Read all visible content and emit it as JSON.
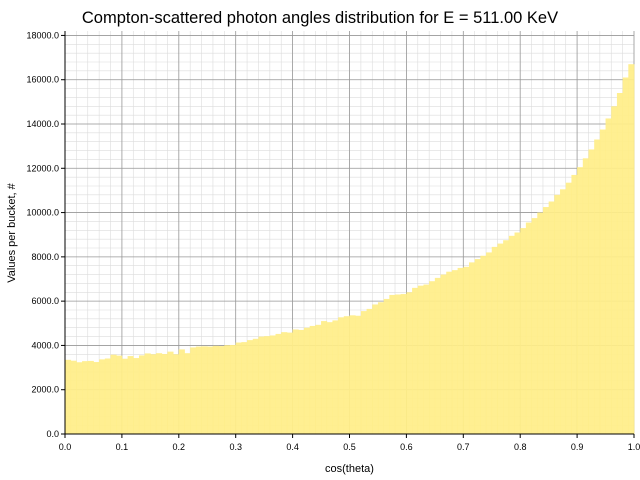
{
  "chart_data": {
    "type": "bar",
    "title": "Compton-scattered photon angles distribution for E = 511.00 KeV",
    "xlabel": "cos(theta)",
    "ylabel": "Values per bucket, #",
    "xlim": [
      0.0,
      1.0
    ],
    "ylim": [
      0,
      18200
    ],
    "bin_width": 0.01,
    "x_ticks": [
      "0.0",
      "0.1",
      "0.2",
      "0.3",
      "0.4",
      "0.5",
      "0.6",
      "0.7",
      "0.8",
      "0.9",
      "1.0"
    ],
    "y_ticks": [
      "0.0",
      "2000.0",
      "4000.0",
      "6000.0",
      "8000.0",
      "10000.0",
      "12000.0",
      "14000.0",
      "16000.0",
      "18000.0"
    ],
    "grid": true,
    "bar_color": "#ffee88",
    "grid_major_color": "#999999",
    "grid_minor_color": "#dcdcdc",
    "x": [
      0.005,
      0.015,
      0.025,
      0.035,
      0.045,
      0.055,
      0.065,
      0.075,
      0.085,
      0.095,
      0.105,
      0.115,
      0.125,
      0.135,
      0.145,
      0.155,
      0.165,
      0.175,
      0.185,
      0.195,
      0.205,
      0.215,
      0.225,
      0.235,
      0.245,
      0.255,
      0.265,
      0.275,
      0.285,
      0.295,
      0.305,
      0.315,
      0.325,
      0.335,
      0.345,
      0.355,
      0.365,
      0.375,
      0.385,
      0.395,
      0.405,
      0.415,
      0.425,
      0.435,
      0.445,
      0.455,
      0.465,
      0.475,
      0.485,
      0.495,
      0.505,
      0.515,
      0.525,
      0.535,
      0.545,
      0.555,
      0.565,
      0.575,
      0.585,
      0.595,
      0.605,
      0.615,
      0.625,
      0.635,
      0.645,
      0.655,
      0.665,
      0.675,
      0.685,
      0.695,
      0.705,
      0.715,
      0.725,
      0.735,
      0.745,
      0.755,
      0.765,
      0.775,
      0.785,
      0.795,
      0.805,
      0.815,
      0.825,
      0.835,
      0.845,
      0.855,
      0.865,
      0.875,
      0.885,
      0.895,
      0.905,
      0.915,
      0.925,
      0.935,
      0.945,
      0.955,
      0.965,
      0.975,
      0.985,
      0.995
    ],
    "values": [
      3350,
      3310,
      3240,
      3290,
      3300,
      3250,
      3370,
      3410,
      3580,
      3540,
      3400,
      3520,
      3430,
      3550,
      3640,
      3600,
      3650,
      3610,
      3720,
      3600,
      3820,
      3650,
      3910,
      3950,
      3960,
      3950,
      3980,
      3970,
      4010,
      4020,
      4130,
      4150,
      4240,
      4300,
      4400,
      4420,
      4450,
      4520,
      4600,
      4580,
      4720,
      4700,
      4800,
      4880,
      4930,
      5100,
      5050,
      5130,
      5270,
      5320,
      5360,
      5340,
      5550,
      5650,
      5850,
      5950,
      6100,
      6280,
      6300,
      6320,
      6400,
      6600,
      6700,
      6750,
      6900,
      7050,
      7200,
      7330,
      7400,
      7500,
      7550,
      7750,
      7900,
      8050,
      8200,
      8450,
      8600,
      8750,
      8950,
      9100,
      9300,
      9550,
      9750,
      10000,
      10250,
      10500,
      10800,
      11050,
      11350,
      11700,
      12050,
      12450,
      12850,
      13300,
      13750,
      14250,
      14800,
      15400,
      16100,
      16700
    ]
  }
}
